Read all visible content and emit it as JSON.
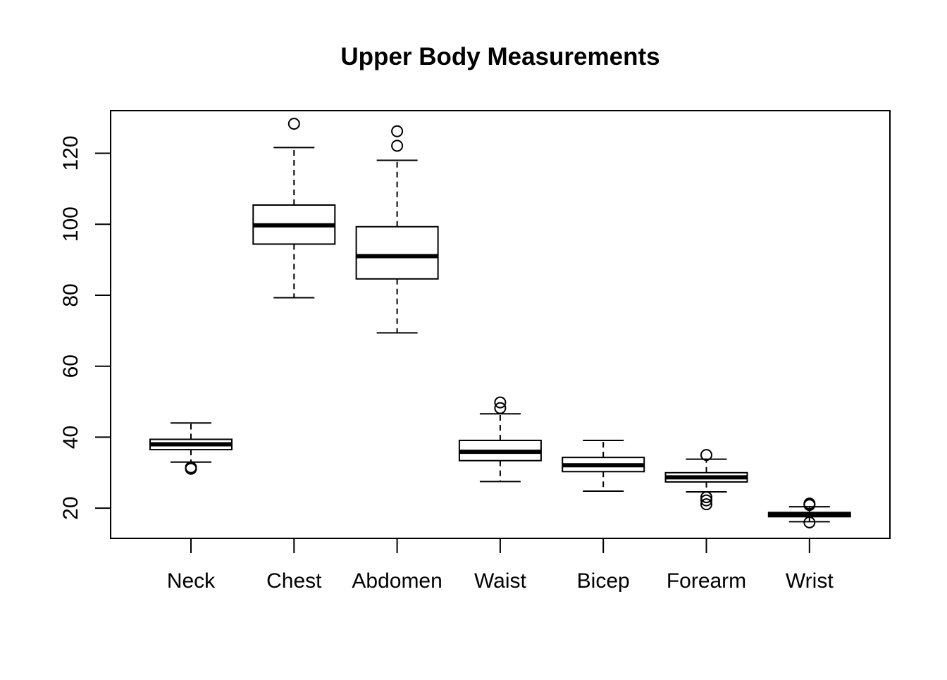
{
  "chart_data": {
    "type": "box",
    "title": "Upper Body Measurements",
    "xlabel": "",
    "ylabel": "",
    "ylim": [
      11.5,
      132
    ],
    "yticks": [
      20,
      40,
      60,
      80,
      100,
      120
    ],
    "ytick_labels": [
      "20",
      "40",
      "60",
      "80",
      "100",
      "120"
    ],
    "grid": false,
    "legend": "none",
    "categories": [
      "Neck",
      "Chest",
      "Abdomen",
      "Waist",
      "Bicep",
      "Forearm",
      "Wrist"
    ],
    "boxes": [
      {
        "name": "Neck",
        "whisker_low": 33.0,
        "q1": 36.5,
        "median": 38.0,
        "q3": 39.4,
        "whisker_high": 44.0,
        "outliers": [
          31.1,
          31.5
        ]
      },
      {
        "name": "Chest",
        "whisker_low": 79.3,
        "q1": 94.4,
        "median": 99.7,
        "q3": 105.4,
        "whisker_high": 121.6,
        "outliers": [
          128.3
        ]
      },
      {
        "name": "Abdomen",
        "whisker_low": 69.4,
        "q1": 84.6,
        "median": 91.0,
        "q3": 99.3,
        "whisker_high": 118.0,
        "outliers": [
          122.1,
          126.2
        ]
      },
      {
        "name": "Waist",
        "whisker_low": 27.5,
        "q1": 33.4,
        "median": 35.9,
        "q3": 39.1,
        "whisker_high": 46.6,
        "outliers": [
          48.2,
          49.8
        ]
      },
      {
        "name": "Bicep",
        "whisker_low": 24.8,
        "q1": 30.3,
        "median": 32.1,
        "q3": 34.3,
        "whisker_high": 39.1,
        "outliers": []
      },
      {
        "name": "Forearm",
        "whisker_low": 24.6,
        "q1": 27.4,
        "median": 28.7,
        "q3": 30.0,
        "whisker_high": 33.8,
        "outliers": [
          35.0,
          23.1,
          22.2,
          21.1
        ]
      },
      {
        "name": "Wrist",
        "whisker_low": 16.2,
        "q1": 17.6,
        "median": 18.3,
        "q3": 18.8,
        "whisker_high": 20.4,
        "outliers": [
          21.3,
          20.9,
          16.0
        ]
      }
    ]
  }
}
